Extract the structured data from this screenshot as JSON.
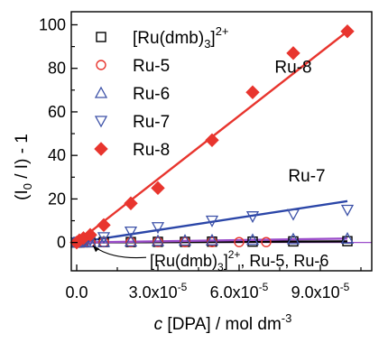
{
  "chart_data": {
    "type": "scatter",
    "xlabel": {
      "italic": "c",
      "main": " [DPA] / mol dm",
      "sup": "-3"
    },
    "ylabel": {
      "open": "(I",
      "sub": "0",
      "close": " / I) - 1"
    },
    "xlim": [
      -2e-06,
      0.000109
    ],
    "ylim": [
      -13,
      106
    ],
    "x_ticks": [
      {
        "value": 0,
        "label": "0.0",
        "base": "",
        "exp": ""
      },
      {
        "value": 3e-05,
        "label": "",
        "base": "3.0x10",
        "exp": "-5"
      },
      {
        "value": 6e-05,
        "label": "",
        "base": "6.0x10",
        "exp": "-5"
      },
      {
        "value": 9e-05,
        "label": "",
        "base": "9.0x10",
        "exp": "-5"
      }
    ],
    "x_minor_ticks": [
      1.5e-05,
      4.5e-05,
      7.5e-05,
      0.000105
    ],
    "y_ticks": [
      0,
      20,
      40,
      60,
      80,
      100
    ],
    "y_tick_labels": [
      "0",
      "20",
      "40",
      "60",
      "80",
      "100"
    ],
    "y_minor_ticks": [
      10,
      30,
      50,
      70,
      90
    ],
    "zero_line": 0,
    "series": [
      {
        "name": "[Ru(dmb)3]2+",
        "name_main": "[Ru(dmb)",
        "name_sub": "3",
        "name_close": "]",
        "name_sup": "2+",
        "marker": "square",
        "color": "#000000",
        "x": [
          0,
          1e-06,
          2.5e-06,
          5e-06,
          1e-05,
          2e-05,
          3e-05,
          4e-05,
          5e-05,
          6.5e-05,
          8e-05,
          0.0001
        ],
        "y": [
          0,
          0,
          0.1,
          0.1,
          0.2,
          0.2,
          0.3,
          0.3,
          0.4,
          0.4,
          0.5,
          0.6
        ],
        "fit": {
          "slope": 5000,
          "intercept": 0,
          "color": "#000000"
        }
      },
      {
        "name": "Ru-5",
        "marker": "circle",
        "color": "#e8352e",
        "x": [
          0,
          1e-06,
          2.5e-06,
          5e-06,
          1e-05,
          2e-05,
          3e-05,
          4e-05,
          5e-05,
          6e-05,
          7e-05
        ],
        "y": [
          0,
          0,
          0,
          0.1,
          0.1,
          0.1,
          0.2,
          0.2,
          0.2,
          0.2,
          0.2
        ]
      },
      {
        "name": "Ru-6",
        "marker": "triangle-up",
        "color": "#3d52a8",
        "x": [
          0,
          1e-06,
          2.5e-06,
          5e-06,
          1e-05,
          2e-05,
          3e-05,
          4e-05,
          5e-05,
          6.5e-05,
          8e-05,
          0.0001
        ],
        "y": [
          0,
          0.1,
          0.1,
          0.2,
          0.3,
          0.5,
          0.7,
          0.9,
          1.0,
          1.2,
          1.5,
          1.8
        ],
        "fit": {
          "slope": 18000,
          "intercept": 0,
          "color": "#9b4dca"
        }
      },
      {
        "name": "Ru-7",
        "marker": "triangle-down",
        "color": "#3d52a8",
        "x": [
          0,
          1e-06,
          2.5e-06,
          5e-06,
          1e-05,
          2e-05,
          3e-05,
          5e-05,
          6.5e-05,
          8e-05,
          0.0001
        ],
        "y": [
          0,
          0.3,
          0.6,
          1.2,
          2.4,
          5,
          7,
          10,
          12,
          13,
          15
        ],
        "fit": {
          "slope": 190000,
          "intercept": 0,
          "color": "#2b46a8"
        }
      },
      {
        "name": "Ru-8",
        "marker": "diamond-filled",
        "color": "#e8352e",
        "x": [
          0,
          1e-06,
          2.5e-06,
          5e-06,
          1e-05,
          2e-05,
          3e-05,
          5e-05,
          6.5e-05,
          8e-05,
          0.0001
        ],
        "y": [
          0,
          1,
          2,
          3.5,
          8,
          18,
          25,
          47,
          69,
          87,
          97
        ],
        "fit": {
          "slope": 970000,
          "intercept": 0,
          "color": "#e8352e"
        }
      }
    ],
    "annotations": [
      {
        "text": "Ru-8",
        "x": 8e-05,
        "y": 78
      },
      {
        "text": "Ru-7",
        "x": 8.5e-05,
        "y": 28
      },
      {
        "main": "[Ru(dmb)",
        "sub": "3",
        "close": "]",
        "sup": "2+",
        "tail": ", Ru-5, Ru-6",
        "x": 2.7e-05,
        "y": -11
      }
    ],
    "legend": "top-left"
  }
}
